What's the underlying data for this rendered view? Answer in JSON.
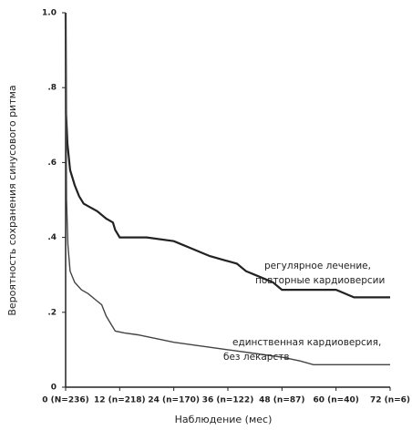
{
  "chart_data": {
    "type": "line",
    "y_label": "Вероятность сохранения синусового ритма",
    "x_label": "Наблюдение (мес)",
    "xlim": [
      0,
      72
    ],
    "ylim": [
      0,
      1
    ],
    "xticks": [
      {
        "value": 0,
        "label": "0 (N=236)"
      },
      {
        "value": 12,
        "label": "12 (n=218)"
      },
      {
        "value": 24,
        "label": "24 (n=170)"
      },
      {
        "value": 36,
        "label": "36 (n=122)"
      },
      {
        "value": 48,
        "label": "48 (n=87)"
      },
      {
        "value": 60,
        "label": "60 (n=40)"
      },
      {
        "value": 72,
        "label": "72 (n=6)"
      }
    ],
    "yticks": [
      0,
      {
        "value": 0.2,
        "label": ".2"
      },
      {
        "value": 0.4,
        "label": ".4"
      },
      {
        "value": 0.6,
        "label": ".6"
      },
      {
        "value": 0.8,
        "label": ".8"
      },
      {
        "value": 1,
        "label": "1.0"
      }
    ],
    "series": [
      {
        "color": "#222222",
        "width": 2.2,
        "x": [
          0,
          0.1,
          0.4,
          1,
          2,
          3,
          4,
          5.5,
          7,
          9,
          10.5,
          11,
          12,
          18,
          24,
          26,
          28,
          30,
          32,
          35,
          38,
          40,
          42,
          44,
          46,
          48,
          54,
          60,
          64,
          72
        ],
        "values": [
          1,
          0.73,
          0.65,
          0.58,
          0.54,
          0.51,
          0.49,
          0.48,
          0.47,
          0.45,
          0.44,
          0.42,
          0.4,
          0.4,
          0.39,
          0.38,
          0.37,
          0.36,
          0.35,
          0.34,
          0.33,
          0.31,
          0.3,
          0.29,
          0.28,
          0.26,
          0.26,
          0.26,
          0.24,
          0.24
        ]
      },
      {
        "color": "#444444",
        "width": 1.4,
        "x": [
          0,
          0.2,
          0.5,
          1,
          2,
          3.5,
          5,
          7,
          8,
          9,
          10,
          11,
          13,
          16,
          20,
          24,
          30,
          36,
          42,
          48,
          52,
          55,
          60,
          72
        ],
        "values": [
          1,
          0.5,
          0.38,
          0.31,
          0.28,
          0.26,
          0.25,
          0.23,
          0.22,
          0.19,
          0.17,
          0.15,
          0.145,
          0.14,
          0.13,
          0.12,
          0.11,
          0.1,
          0.09,
          0.08,
          0.07,
          0.06,
          0.06,
          0.06
        ]
      }
    ],
    "annotations": [
      [
        "регулярное лечение,",
        "повторные кардиоверсии"
      ],
      [
        "единственная кардиоверсия,",
        "без лекарств"
      ]
    ]
  }
}
